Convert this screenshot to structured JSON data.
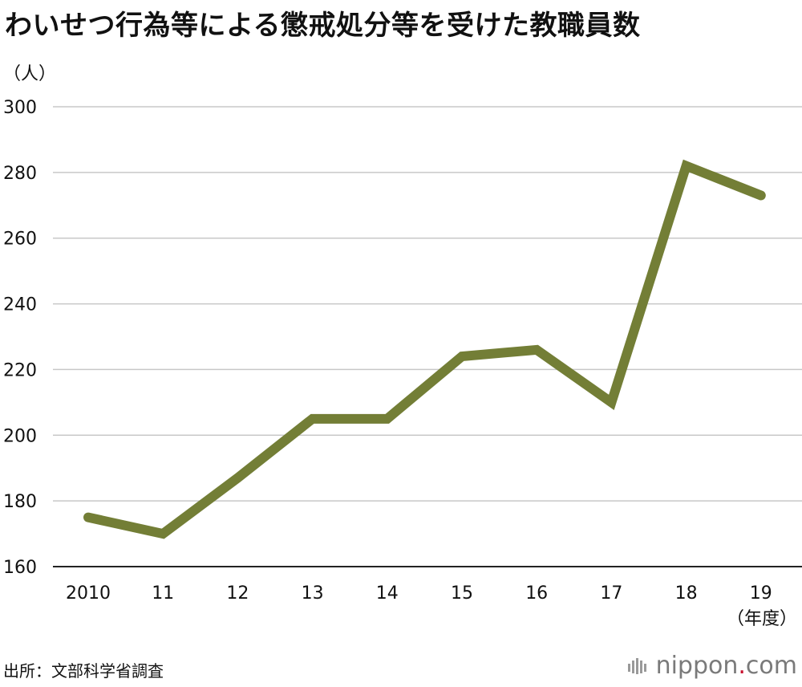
{
  "title": "わいせつ行為等による懲戒処分等を受けた教職員数",
  "source": "出所：文部科学省調査",
  "brand": {
    "name": "nippon",
    "dot": ".",
    "suffix": "com",
    "accent": "#c8102e"
  },
  "chart_data": {
    "type": "line",
    "title": "わいせつ行為等による懲戒処分等を受けた教職員数",
    "ylabel": "（人）",
    "xlabel": "（年度）",
    "categories": [
      "2010",
      "11",
      "12",
      "13",
      "14",
      "15",
      "16",
      "17",
      "18",
      "19"
    ],
    "series": [
      {
        "values": [
          175,
          170,
          187,
          205,
          205,
          224,
          226,
          210,
          282,
          273
        ],
        "color": "#737e36"
      }
    ],
    "ylim": [
      160,
      300
    ],
    "yticks": [
      160,
      180,
      200,
      220,
      240,
      260,
      280,
      300
    ],
    "grid": true,
    "legend": "none"
  }
}
